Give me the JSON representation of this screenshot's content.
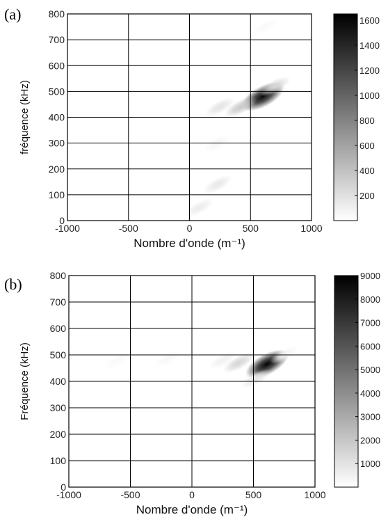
{
  "chart_data": [
    {
      "type": "heatmap",
      "panel_label": "(a)",
      "xlabel": "Nombre d'onde (m⁻¹)",
      "ylabel": "fréquence (kHz)",
      "xlim": [
        -1000,
        1000
      ],
      "ylim": [
        0,
        800
      ],
      "xticks": [
        "-1000",
        "-500",
        "0",
        "500",
        "1000"
      ],
      "yticks": [
        "0",
        "100",
        "200",
        "300",
        "400",
        "500",
        "600",
        "700",
        "800"
      ],
      "grid": true,
      "colorbar": {
        "min": 0,
        "max": 1650,
        "ticks": [
          "200",
          "400",
          "600",
          "800",
          "1000",
          "1200",
          "1400",
          "1600"
        ],
        "colormap": "gray-reversed"
      },
      "blobs": [
        {
          "x": 600,
          "y": 480,
          "value": 1600
        },
        {
          "x": 420,
          "y": 440,
          "value": 350
        },
        {
          "x": 700,
          "y": 520,
          "value": 250
        },
        {
          "x": 250,
          "y": 440,
          "value": 180
        },
        {
          "x": 230,
          "y": 140,
          "value": 150
        },
        {
          "x": 80,
          "y": 50,
          "value": 120
        },
        {
          "x": 230,
          "y": 300,
          "value": 60
        },
        {
          "x": 620,
          "y": 750,
          "value": 40
        }
      ]
    },
    {
      "type": "heatmap",
      "panel_label": "(b)",
      "xlabel": "Nombre d'onde (m⁻¹)",
      "ylabel": "Fréquence (kHz)",
      "xlim": [
        -1000,
        1000
      ],
      "ylim": [
        0,
        800
      ],
      "xticks": [
        "-1000",
        "-500",
        "0",
        "500",
        "1000"
      ],
      "yticks": [
        "0",
        "100",
        "200",
        "300",
        "400",
        "500",
        "600",
        "700",
        "800"
      ],
      "grid": true,
      "colorbar": {
        "min": 0,
        "max": 9000,
        "ticks": [
          "1000",
          "2000",
          "3000",
          "4000",
          "5000",
          "6000",
          "7000",
          "8000",
          "9000"
        ],
        "colormap": "gray-reversed"
      },
      "blobs": [
        {
          "x": 610,
          "y": 465,
          "value": 9000
        },
        {
          "x": 380,
          "y": 470,
          "value": 1500
        },
        {
          "x": 520,
          "y": 410,
          "value": 900
        },
        {
          "x": 250,
          "y": 480,
          "value": 500
        },
        {
          "x": -200,
          "y": 485,
          "value": 250
        },
        {
          "x": -600,
          "y": 480,
          "value": 200
        },
        {
          "x": 750,
          "y": 500,
          "value": 400
        }
      ]
    }
  ]
}
